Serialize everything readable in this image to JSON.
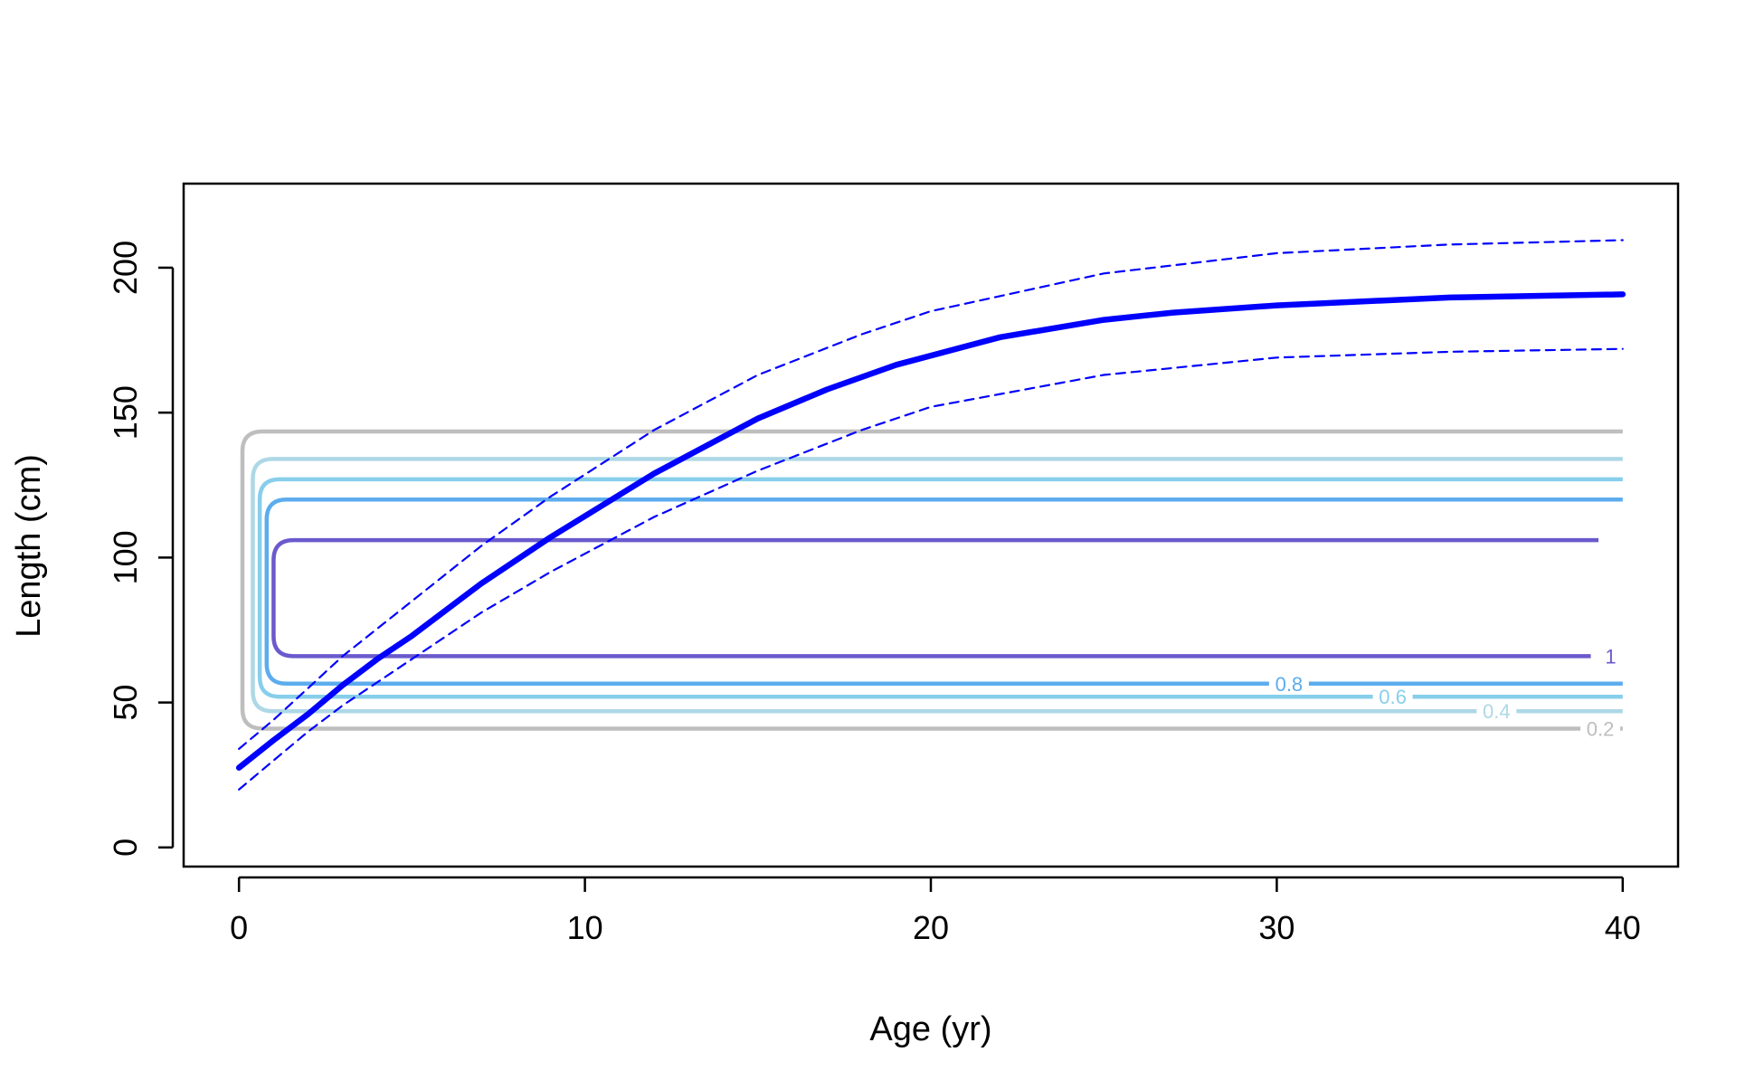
{
  "chart_data": {
    "type": "line",
    "title": "",
    "xlabel": "Age (yr)",
    "ylabel": "Length (cm)",
    "xlim": [
      -1.6,
      41.6
    ],
    "ylim": [
      -6.6,
      229
    ],
    "xticks": [
      0,
      10,
      20,
      30,
      40
    ],
    "yticks": [
      0,
      50,
      100,
      150,
      200
    ],
    "grid": false,
    "legend": "none",
    "series": [
      {
        "style": "solid",
        "color": "#0000FF",
        "x": [
          0,
          1,
          2,
          3,
          4,
          5,
          7,
          9,
          12,
          15,
          17,
          19,
          22,
          25,
          27,
          30,
          35,
          40
        ],
        "y": [
          27.5,
          37,
          46,
          56,
          65,
          73,
          91,
          107,
          129,
          148,
          158,
          166.5,
          176,
          182,
          184.5,
          187,
          189.7,
          190.8
        ]
      },
      {
        "style": "dashed",
        "color": "#0000FF",
        "x": [
          0,
          1,
          2,
          3,
          5,
          7,
          9,
          12,
          15,
          18,
          20,
          25,
          30,
          35,
          40
        ],
        "y": [
          34,
          44,
          55,
          66,
          85,
          104,
          121,
          144,
          163,
          177,
          185,
          198,
          205,
          208,
          209.5
        ]
      },
      {
        "style": "dashed",
        "color": "#0000FF",
        "x": [
          0,
          1,
          2,
          3,
          5,
          7,
          9,
          12,
          15,
          18,
          20,
          25,
          30,
          35,
          40
        ],
        "y": [
          20,
          30,
          40,
          49,
          65,
          81,
          95,
          114,
          130,
          144,
          152,
          163,
          169,
          171,
          172
        ]
      }
    ],
    "contours": [
      {
        "level": "0.2",
        "color": "#BEBEBE",
        "x0": 0.1,
        "x1": 40,
        "y_low": 41,
        "y_high": 143.5,
        "label_x": 39.3,
        "label_y": 41
      },
      {
        "level": "0.4",
        "color": "#ADD8E6",
        "x0": 0.4,
        "x1": 40,
        "y_low": 47,
        "y_high": 134,
        "label_x": 36.3,
        "label_y": 47
      },
      {
        "level": "0.6",
        "color": "#87CEEB",
        "x0": 0.6,
        "x1": 40,
        "y_low": 52,
        "y_high": 127,
        "label_x": 33.3,
        "label_y": 52
      },
      {
        "level": "0.8",
        "color": "#5CACEE",
        "x0": 0.8,
        "x1": 40,
        "y_low": 56.5,
        "y_high": 120,
        "label_x": 30.3,
        "label_y": 56.5
      },
      {
        "level": "1",
        "color": "#6A5ACD",
        "x0": 1,
        "x1": 39.3,
        "y_low": 66,
        "y_high": 106,
        "label_x": 39.6,
        "label_y": 66
      }
    ]
  }
}
